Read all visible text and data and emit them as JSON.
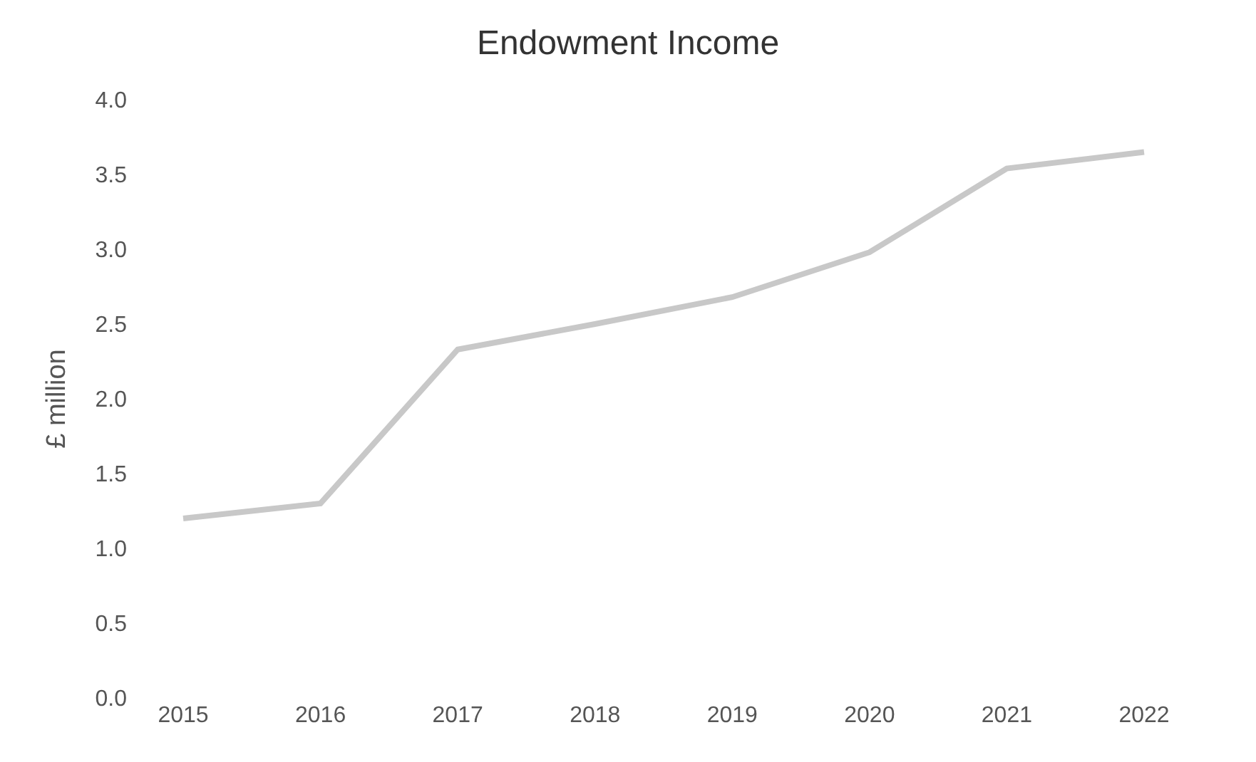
{
  "chart_data": {
    "type": "line",
    "title": "Endowment Income",
    "ylabel": "£ million",
    "categories": [
      "2015",
      "2016",
      "2017",
      "2018",
      "2019",
      "2020",
      "2021",
      "2022"
    ],
    "series": [
      {
        "color": "#c8c8c8",
        "values": [
          1.2,
          1.3,
          2.33,
          2.5,
          2.68,
          2.98,
          3.54,
          3.65
        ]
      }
    ],
    "ylim": [
      0,
      4
    ],
    "yticks": [
      {
        "value": 0,
        "label": "0.0"
      },
      {
        "value": 0.5,
        "label": "0.5"
      },
      {
        "value": 1,
        "label": "1.0"
      },
      {
        "value": 1.5,
        "label": "1.5"
      },
      {
        "value": 2,
        "label": "2.0"
      },
      {
        "value": 2.5,
        "label": "2.5"
      },
      {
        "value": 3,
        "label": "3.0"
      },
      {
        "value": 3.5,
        "label": "3.5"
      },
      {
        "value": 4,
        "label": "4.0"
      }
    ],
    "legend": false,
    "marker": "none",
    "line_style": "solid"
  }
}
